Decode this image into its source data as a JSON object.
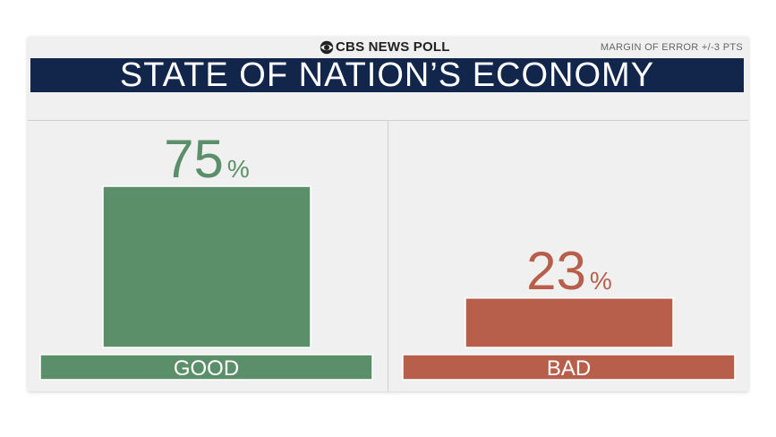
{
  "header": {
    "brand": "CBS NEWS POLL",
    "margin_of_error": "MARGIN OF ERROR +/-3 PTS",
    "title": "STATE OF NATION’S ECONOMY"
  },
  "colors": {
    "title_bg": "#12254a",
    "good": "#5b8f69",
    "bad": "#b85f4c"
  },
  "icons": {
    "brand_logo": "cbs-eye-icon"
  },
  "chart_data": {
    "type": "bar",
    "title": "STATE OF NATION’S ECONOMY",
    "categories": [
      "GOOD",
      "BAD"
    ],
    "values": [
      75,
      23
    ],
    "value_labels": [
      "75",
      "23"
    ],
    "unit": "%",
    "colors": [
      "#5b8f69",
      "#b85f4c"
    ],
    "ylim": [
      0,
      100
    ],
    "grid": false,
    "legend": "none"
  }
}
